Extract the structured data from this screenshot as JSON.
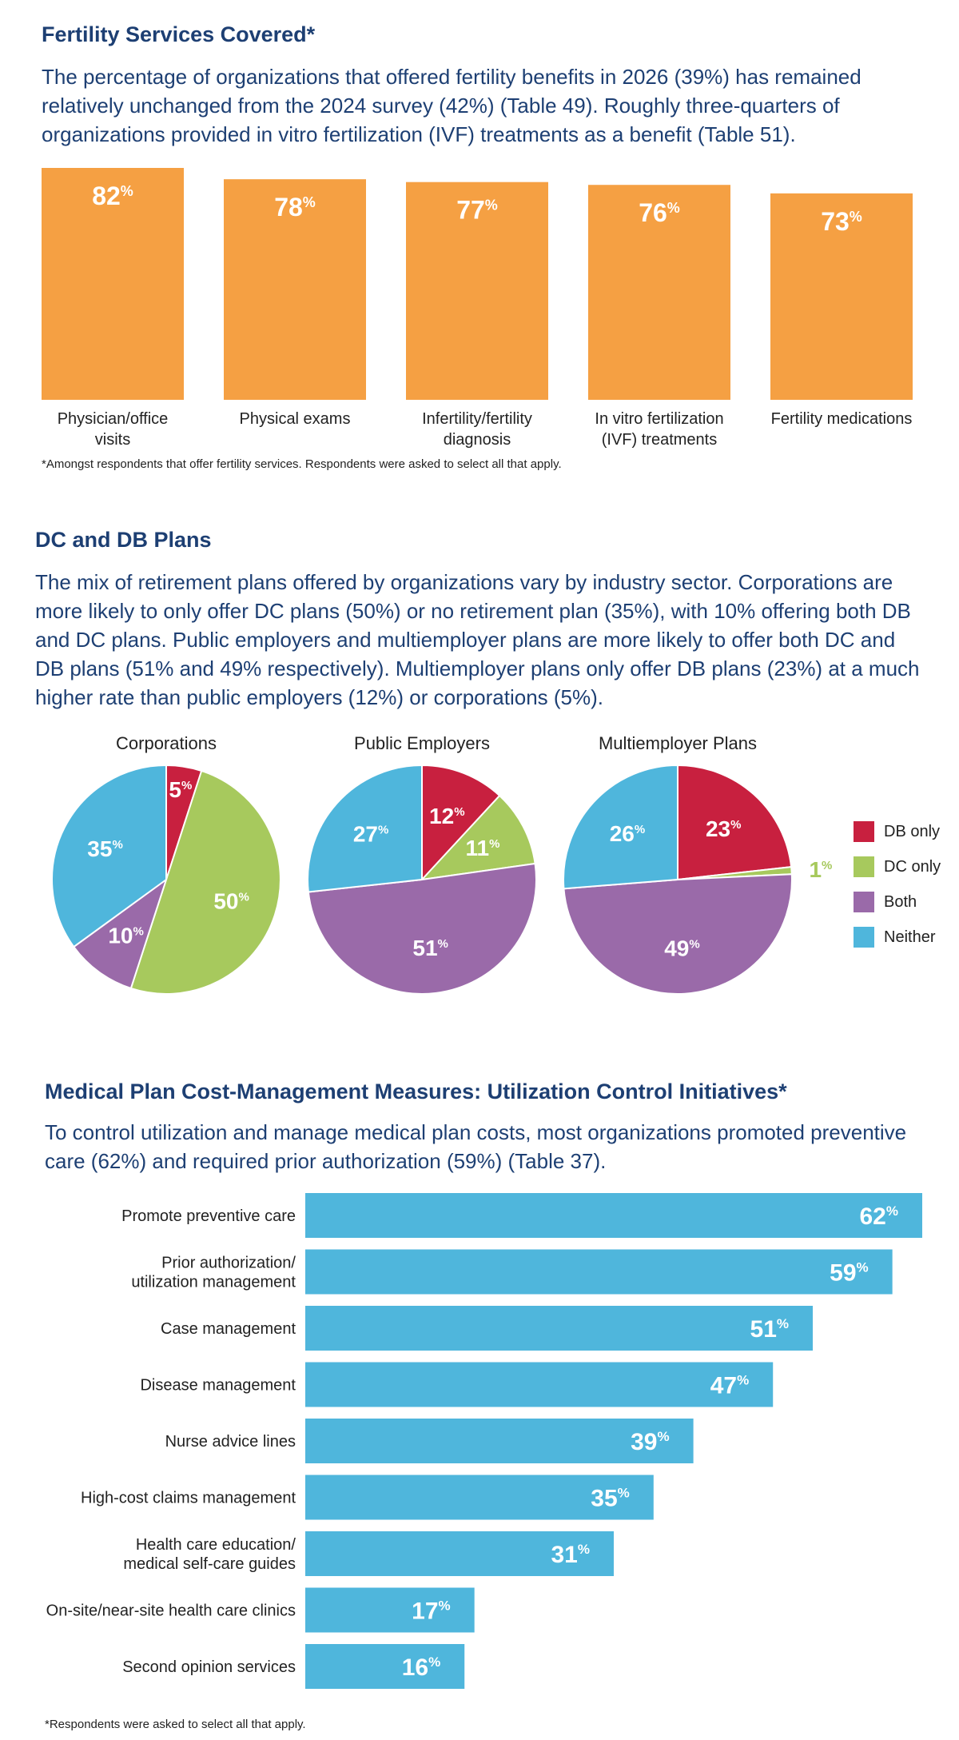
{
  "fertility": {
    "title": "Fertility Services Covered*",
    "intro_lines": [
      "The percentage of organizations that offered fertility benefits in 2026 (39%) has remained",
      "relatively unchanged from the 2024 survey (42%) (Table 49). Roughly three-quarters of",
      "organizations provided in vitro fertilization (IVF) treatments as a benefit (Table 51)."
    ],
    "footnote": "*Amongst respondents that offer fertility services. Respondents were asked to select all that apply."
  },
  "dcdb": {
    "title": "DC and DB Plans",
    "intro_lines": [
      "The mix of retirement plans offered by organizations vary by industry sector. Corporations are",
      "more likely to only offer DC plans (50%) or no retirement plan (35%), with 10% offering both DB",
      "and DC plans. Public employers and multiemployer plans are more likely to offer both DC and",
      "DB plans (51% and 49% respectively). Multiemployer plans only offer DB plans (23%) at a much",
      "higher rate than public employers (12%) or corporations (5%)."
    ]
  },
  "medical": {
    "title": "Medical Plan Cost-Management Measures: Utilization Control Initiatives*",
    "intro_lines": [
      "To control utilization and manage medical plan costs, most organizations promoted preventive",
      "care (62%) and required prior authorization (59%) (Table 37)."
    ],
    "footnote": "*Respondents were asked to select all that apply."
  },
  "colors": {
    "heading": "#1d3f73",
    "orange": "#f5a043",
    "db_only": "#c8203f",
    "dc_only": "#a7c95d",
    "both": "#9a6aa9",
    "neither": "#4fb6dc",
    "bar_blue": "#4fb6dc"
  },
  "chart_data": [
    {
      "type": "bar",
      "orientation": "vertical",
      "categories": [
        [
          "Physician/office",
          "visits"
        ],
        [
          "Physical exams"
        ],
        [
          "Infertility/fertility",
          "diagnosis"
        ],
        [
          "In vitro fertilization",
          "(IVF) treatments"
        ],
        [
          "Fertility medications"
        ]
      ],
      "values": [
        82,
        78,
        77,
        76,
        73
      ],
      "unit": "%",
      "ylim": [
        0,
        82
      ]
    },
    {
      "type": "pie",
      "legend": [
        "DB only",
        "DC only",
        "Both",
        "Neither"
      ],
      "legend_position": "right",
      "pies": [
        {
          "title": "Corporations",
          "values": [
            5,
            50,
            10,
            35
          ]
        },
        {
          "title": "Public Employers",
          "values": [
            12,
            11,
            51,
            27
          ]
        },
        {
          "title": "Multiemployer Plans",
          "values": [
            23,
            1,
            49,
            26
          ]
        }
      ],
      "unit": "%"
    },
    {
      "type": "bar",
      "orientation": "horizontal",
      "categories": [
        [
          "Promote preventive care"
        ],
        [
          "Prior authorization/",
          "utilization management"
        ],
        [
          "Case management"
        ],
        [
          "Disease management"
        ],
        [
          "Nurse advice lines"
        ],
        [
          "High-cost claims management"
        ],
        [
          "Health care education/",
          "medical self-care guides"
        ],
        [
          "On-site/near-site health care clinics"
        ],
        [
          "Second opinion services"
        ]
      ],
      "values": [
        62,
        59,
        51,
        47,
        39,
        35,
        31,
        17,
        16
      ],
      "unit": "%",
      "xlim": [
        0,
        62
      ]
    }
  ]
}
